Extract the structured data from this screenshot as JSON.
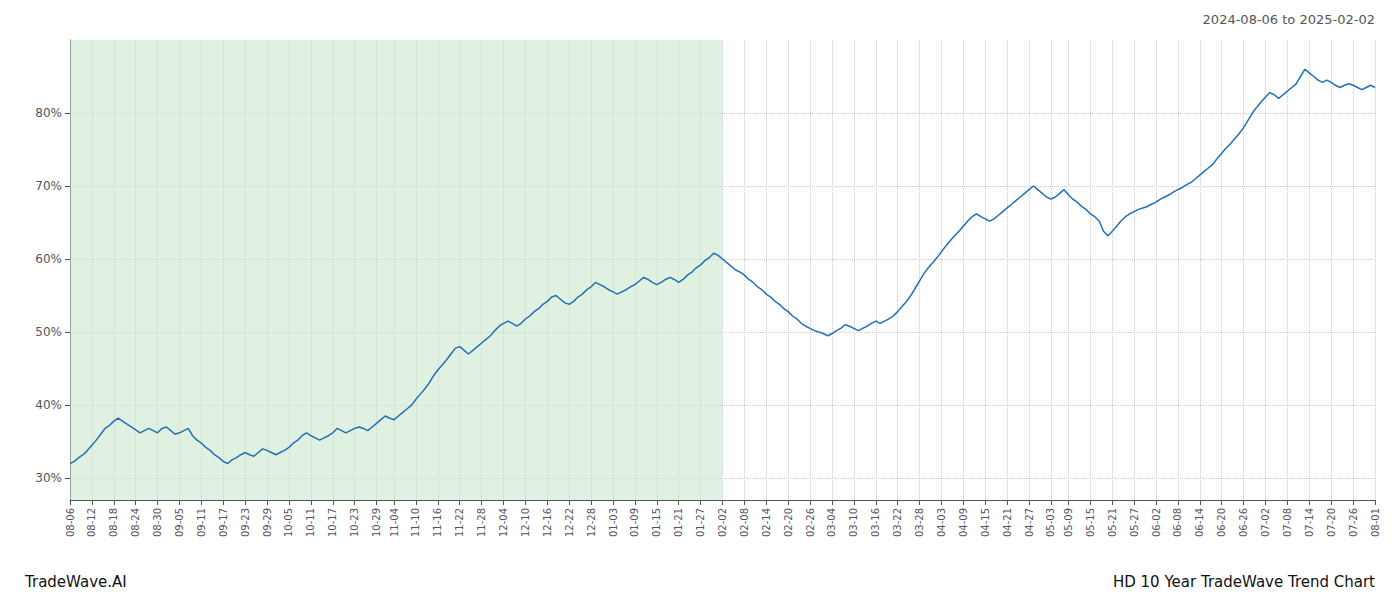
{
  "chart_data": {
    "type": "line",
    "title": "HD 10 Year TradeWave Trend Chart",
    "subtitle": "2024-08-06 to 2025-02-02",
    "annotations": [
      "TradeWave.AI"
    ],
    "color": "#2171b5",
    "grid": true,
    "ylim": [
      27,
      90
    ],
    "yticks": [
      {
        "value": 30,
        "label": "30%"
      },
      {
        "value": 40,
        "label": "40%"
      },
      {
        "value": 50,
        "label": "50%"
      },
      {
        "value": 60,
        "label": "60%"
      },
      {
        "value": 70,
        "label": "70%"
      },
      {
        "value": 80,
        "label": "80%"
      }
    ],
    "shade": {
      "from": "08-06",
      "to": "02-02",
      "color": "#c8e6c9"
    },
    "categories": [
      "08-06",
      null,
      null,
      null,
      null,
      "08-12",
      null,
      null,
      null,
      null,
      "08-18",
      null,
      null,
      null,
      null,
      "08-24",
      null,
      null,
      null,
      null,
      "08-30",
      null,
      null,
      null,
      null,
      "09-05",
      null,
      null,
      null,
      null,
      "09-11",
      null,
      null,
      null,
      null,
      "09-17",
      null,
      null,
      null,
      null,
      "09-23",
      null,
      null,
      null,
      null,
      "09-29",
      null,
      null,
      null,
      null,
      "10-05",
      null,
      null,
      null,
      null,
      "10-11",
      null,
      null,
      null,
      null,
      "10-17",
      null,
      null,
      null,
      null,
      "10-23",
      null,
      null,
      null,
      null,
      "10-29",
      null,
      null,
      null,
      "11-04",
      null,
      null,
      null,
      null,
      "11-10",
      null,
      null,
      null,
      null,
      "11-16",
      null,
      null,
      null,
      null,
      "11-22",
      null,
      null,
      null,
      null,
      "11-28",
      null,
      null,
      null,
      null,
      "12-04",
      null,
      null,
      null,
      null,
      "12-10",
      null,
      null,
      null,
      null,
      "12-16",
      null,
      null,
      null,
      null,
      "12-22",
      null,
      null,
      null,
      null,
      "12-28",
      null,
      null,
      null,
      null,
      "01-03",
      null,
      null,
      null,
      null,
      "01-09",
      null,
      null,
      null,
      null,
      "01-15",
      null,
      null,
      null,
      null,
      "01-21",
      null,
      null,
      null,
      null,
      "01-27",
      null,
      null,
      null,
      null,
      "02-02",
      null,
      null,
      null,
      null,
      "02-08",
      null,
      null,
      null,
      null,
      "02-14",
      null,
      null,
      null,
      null,
      "02-20",
      null,
      null,
      null,
      null,
      "02-26",
      null,
      null,
      null,
      null,
      "03-04",
      null,
      null,
      null,
      null,
      "03-10",
      null,
      null,
      null,
      null,
      "03-16",
      null,
      null,
      null,
      null,
      "03-22",
      null,
      null,
      null,
      null,
      "03-28",
      null,
      null,
      null,
      null,
      "04-03",
      null,
      null,
      null,
      null,
      "04-09",
      null,
      null,
      null,
      null,
      "04-15",
      null,
      null,
      null,
      null,
      "04-21",
      null,
      null,
      null,
      null,
      "04-27",
      null,
      null,
      null,
      null,
      "05-03",
      null,
      null,
      null,
      "05-09",
      null,
      null,
      null,
      null,
      "05-15",
      null,
      null,
      null,
      null,
      "05-21",
      null,
      null,
      null,
      null,
      "05-27",
      null,
      null,
      null,
      null,
      "06-02",
      null,
      null,
      null,
      null,
      "06-08",
      null,
      null,
      null,
      null,
      "06-14",
      null,
      null,
      null,
      null,
      "06-20",
      null,
      null,
      null,
      null,
      "06-26",
      null,
      null,
      null,
      null,
      "07-02",
      null,
      null,
      null,
      null,
      "07-08",
      null,
      null,
      null,
      null,
      "07-14",
      null,
      null,
      null,
      null,
      "07-20",
      null,
      null,
      null,
      null,
      "07-26",
      null,
      null,
      null,
      null,
      "08-01"
    ],
    "values": [
      32.0,
      32.3,
      32.8,
      33.2,
      33.8,
      34.5,
      35.2,
      36.0,
      36.8,
      37.2,
      37.8,
      38.2,
      37.8,
      37.4,
      37.0,
      36.6,
      36.2,
      36.5,
      36.8,
      36.5,
      36.2,
      36.8,
      37.0,
      36.5,
      36.0,
      36.2,
      36.5,
      36.8,
      35.8,
      35.2,
      34.8,
      34.2,
      33.8,
      33.2,
      32.8,
      32.3,
      32.0,
      32.5,
      32.8,
      33.2,
      33.5,
      33.2,
      33.0,
      33.5,
      34.0,
      33.8,
      33.5,
      33.2,
      33.5,
      33.8,
      34.2,
      34.8,
      35.2,
      35.8,
      36.2,
      35.8,
      35.5,
      35.2,
      35.5,
      35.8,
      36.2,
      36.8,
      36.5,
      36.2,
      36.5,
      36.8,
      37.0,
      36.8,
      36.5,
      37.0,
      37.5,
      38.0,
      38.5,
      38.2,
      38.0,
      38.5,
      39.0,
      39.5,
      40.0,
      40.8,
      41.5,
      42.2,
      43.0,
      44.0,
      44.8,
      45.5,
      46.2,
      47.0,
      47.8,
      48.0,
      47.5,
      47.0,
      47.5,
      48.0,
      48.5,
      49.0,
      49.5,
      50.2,
      50.8,
      51.2,
      51.5,
      51.2,
      50.8,
      51.2,
      51.8,
      52.2,
      52.8,
      53.2,
      53.8,
      54.2,
      54.8,
      55.0,
      54.5,
      54.0,
      53.8,
      54.2,
      54.8,
      55.2,
      55.8,
      56.2,
      56.8,
      56.5,
      56.2,
      55.8,
      55.5,
      55.2,
      55.5,
      55.8,
      56.2,
      56.5,
      57.0,
      57.5,
      57.2,
      56.8,
      56.5,
      56.8,
      57.2,
      57.5,
      57.2,
      56.8,
      57.2,
      57.8,
      58.2,
      58.8,
      59.2,
      59.8,
      60.2,
      60.8,
      60.5,
      60.0,
      59.5,
      59.0,
      58.5,
      58.2,
      57.8,
      57.2,
      56.8,
      56.2,
      55.8,
      55.2,
      54.8,
      54.2,
      53.8,
      53.2,
      52.8,
      52.2,
      51.8,
      51.2,
      50.8,
      50.5,
      50.2,
      50.0,
      49.8,
      49.5,
      49.8,
      50.2,
      50.5,
      51.0,
      50.8,
      50.5,
      50.2,
      50.5,
      50.8,
      51.2,
      51.5,
      51.2,
      51.5,
      51.8,
      52.2,
      52.8,
      53.5,
      54.2,
      55.0,
      56.0,
      57.0,
      58.0,
      58.8,
      59.5,
      60.2,
      61.0,
      61.8,
      62.5,
      63.2,
      63.8,
      64.5,
      65.2,
      65.8,
      66.2,
      65.8,
      65.5,
      65.2,
      65.5,
      66.0,
      66.5,
      67.0,
      67.5,
      68.0,
      68.5,
      69.0,
      69.5,
      70.0,
      69.5,
      69.0,
      68.5,
      68.2,
      68.5,
      69.0,
      69.5,
      68.8,
      68.2,
      67.8,
      67.2,
      66.8,
      66.2,
      65.8,
      65.2,
      63.8,
      63.2,
      63.8,
      64.5,
      65.2,
      65.8,
      66.2,
      66.5,
      66.8,
      67.0,
      67.2,
      67.5,
      67.8,
      68.2,
      68.5,
      68.8,
      69.2,
      69.5,
      69.8,
      70.2,
      70.5,
      71.0,
      71.5,
      72.0,
      72.5,
      73.0,
      73.8,
      74.5,
      75.2,
      75.8,
      76.5,
      77.2,
      78.0,
      79.0,
      80.0,
      80.8,
      81.5,
      82.2,
      82.8,
      82.5,
      82.0,
      82.5,
      83.0,
      83.5,
      84.0,
      85.0,
      86.0,
      85.5,
      85.0,
      84.5,
      84.2,
      84.5,
      84.2,
      83.8,
      83.5,
      83.8,
      84.0,
      83.8,
      83.5,
      83.2,
      83.5,
      83.8,
      83.5
    ]
  }
}
